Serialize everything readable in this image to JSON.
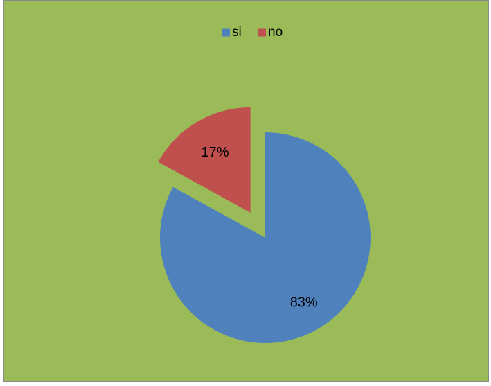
{
  "chart_data": {
    "type": "pie",
    "title": "",
    "labels": [
      "si",
      "no"
    ],
    "values": [
      83,
      17
    ],
    "data_labels": [
      "83%",
      "17%"
    ],
    "colors": [
      "#4f81bd",
      "#c0504d"
    ],
    "exploded": [
      "no"
    ],
    "legend_position": "top-center",
    "background_color": "#9bbb59"
  }
}
